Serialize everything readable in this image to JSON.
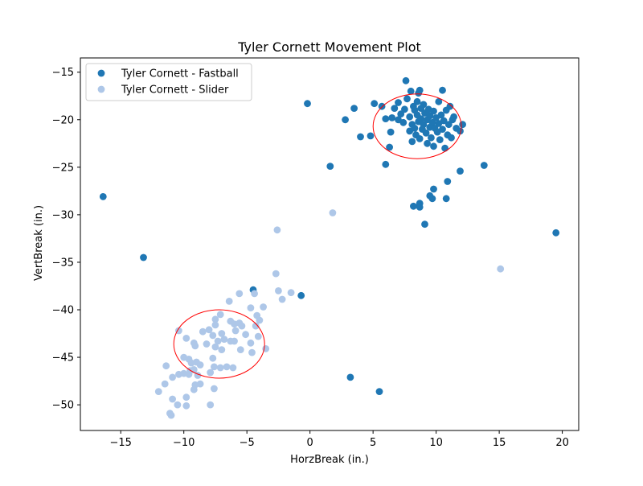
{
  "chart_data": {
    "type": "scatter",
    "title": "Tyler Cornett Movement Plot",
    "xlabel": "HorzBreak (in.)",
    "ylabel": "VertBreak (in.)",
    "xlim": [
      -18.2,
      21.3
    ],
    "ylim": [
      -52.7,
      -13.5
    ],
    "xticks": [
      -15,
      -10,
      -5,
      0,
      5,
      10,
      15,
      20
    ],
    "yticks": [
      -15,
      -20,
      -25,
      -30,
      -35,
      -40,
      -45,
      -50
    ],
    "xtick_labels": [
      "−15",
      "−10",
      "−5",
      "0",
      "5",
      "10",
      "15",
      "20"
    ],
    "ytick_labels": [
      "−15",
      "−20",
      "−25",
      "−30",
      "−35",
      "−40",
      "−45",
      "−50"
    ],
    "grid": false,
    "legend_position": "top-left",
    "ellipse_color": "#ff0000",
    "series": [
      {
        "name": "Tyler Cornett - Fastball",
        "color": "#1f77b4",
        "points": [
          [
            -16.4,
            -28.1
          ],
          [
            -13.2,
            -34.5
          ],
          [
            -0.2,
            -18.3
          ],
          [
            1.6,
            -24.9
          ],
          [
            2.8,
            -20.0
          ],
          [
            3.5,
            -18.8
          ],
          [
            4.0,
            -21.8
          ],
          [
            4.8,
            -21.7
          ],
          [
            5.1,
            -18.3
          ],
          [
            5.7,
            -18.6
          ],
          [
            6.0,
            -19.9
          ],
          [
            6.0,
            -24.7
          ],
          [
            6.3,
            -22.9
          ],
          [
            6.4,
            -21.3
          ],
          [
            6.5,
            -19.8
          ],
          [
            6.7,
            -18.8
          ],
          [
            7.0,
            -18.2
          ],
          [
            7.0,
            -20.0
          ],
          [
            7.2,
            -19.4
          ],
          [
            7.4,
            -20.3
          ],
          [
            7.5,
            -18.9
          ],
          [
            7.6,
            -15.9
          ],
          [
            7.7,
            -17.8
          ],
          [
            7.9,
            -19.7
          ],
          [
            7.9,
            -21.2
          ],
          [
            8.0,
            -17.0
          ],
          [
            8.1,
            -20.5
          ],
          [
            8.1,
            -22.3
          ],
          [
            8.2,
            -18.6
          ],
          [
            8.3,
            -19.0
          ],
          [
            8.3,
            -20.9
          ],
          [
            8.4,
            -21.6
          ],
          [
            8.5,
            -18.1
          ],
          [
            8.5,
            -19.5
          ],
          [
            8.6,
            -17.2
          ],
          [
            8.6,
            -20.2
          ],
          [
            8.7,
            -16.9
          ],
          [
            8.7,
            -22.0
          ],
          [
            8.8,
            -18.8
          ],
          [
            8.8,
            -19.9
          ],
          [
            8.9,
            -21.0
          ],
          [
            9.0,
            -20.5
          ],
          [
            9.0,
            -18.4
          ],
          [
            9.1,
            -19.3
          ],
          [
            9.2,
            -21.4
          ],
          [
            9.3,
            -20.0
          ],
          [
            9.3,
            -22.5
          ],
          [
            9.4,
            -18.9
          ],
          [
            9.5,
            -20.8
          ],
          [
            9.5,
            -19.6
          ],
          [
            9.6,
            -21.9
          ],
          [
            9.7,
            -20.3
          ],
          [
            9.8,
            -19.1
          ],
          [
            9.8,
            -22.8
          ],
          [
            9.9,
            -20.9
          ],
          [
            10.0,
            -19.8
          ],
          [
            10.1,
            -21.3
          ],
          [
            10.2,
            -18.1
          ],
          [
            10.2,
            -20.4
          ],
          [
            10.3,
            -22.1
          ],
          [
            10.4,
            -19.5
          ],
          [
            10.5,
            -21.0
          ],
          [
            10.5,
            -16.9
          ],
          [
            10.6,
            -20.1
          ],
          [
            10.7,
            -23.0
          ],
          [
            10.8,
            -19.0
          ],
          [
            10.9,
            -21.6
          ],
          [
            11.0,
            -20.5
          ],
          [
            11.1,
            -18.6
          ],
          [
            11.2,
            -21.9
          ],
          [
            11.3,
            -20.0
          ],
          [
            11.4,
            -19.7
          ],
          [
            11.6,
            -20.9
          ],
          [
            11.9,
            -25.4
          ],
          [
            11.9,
            -21.2
          ],
          [
            12.1,
            -20.5
          ],
          [
            10.9,
            -26.5
          ],
          [
            9.8,
            -27.3
          ],
          [
            9.7,
            -28.3
          ],
          [
            9.5,
            -28.0
          ],
          [
            8.7,
            -28.8
          ],
          [
            8.7,
            -29.2
          ],
          [
            8.2,
            -29.1
          ],
          [
            9.1,
            -31.0
          ],
          [
            10.8,
            -28.3
          ],
          [
            13.8,
            -24.8
          ],
          [
            19.5,
            -31.9
          ],
          [
            -0.7,
            -38.5
          ],
          [
            -4.5,
            -37.9
          ],
          [
            3.2,
            -47.1
          ],
          [
            5.5,
            -48.6
          ]
        ]
      },
      {
        "name": "Tyler Cornett - Slider",
        "color": "#aec7e8",
        "points": [
          [
            1.8,
            -29.8
          ],
          [
            15.1,
            -35.7
          ],
          [
            -2.6,
            -31.6
          ],
          [
            -2.7,
            -36.2
          ],
          [
            -2.5,
            -38.0
          ],
          [
            -1.5,
            -38.2
          ],
          [
            -2.2,
            -38.9
          ],
          [
            -4.4,
            -38.3
          ],
          [
            -5.6,
            -38.3
          ],
          [
            -6.4,
            -39.1
          ],
          [
            -3.7,
            -39.7
          ],
          [
            -4.7,
            -39.8
          ],
          [
            -4.2,
            -40.6
          ],
          [
            -4.0,
            -41.1
          ],
          [
            -7.1,
            -40.5
          ],
          [
            -7.5,
            -41.0
          ],
          [
            -7.5,
            -41.6
          ],
          [
            -6.3,
            -41.2
          ],
          [
            -6.0,
            -41.5
          ],
          [
            -5.6,
            -41.4
          ],
          [
            -5.4,
            -41.7
          ],
          [
            -4.3,
            -41.7
          ],
          [
            -8.5,
            -42.3
          ],
          [
            -8.0,
            -42.1
          ],
          [
            -7.7,
            -42.7
          ],
          [
            -7.0,
            -42.5
          ],
          [
            -6.8,
            -43.1
          ],
          [
            -6.3,
            -43.3
          ],
          [
            -5.9,
            -42.2
          ],
          [
            -5.1,
            -42.6
          ],
          [
            -4.7,
            -43.5
          ],
          [
            -4.1,
            -42.8
          ],
          [
            -10.4,
            -42.2
          ],
          [
            -9.8,
            -43.0
          ],
          [
            -9.2,
            -43.5
          ],
          [
            -9.1,
            -43.8
          ],
          [
            -8.2,
            -43.6
          ],
          [
            -7.5,
            -43.9
          ],
          [
            -7.3,
            -43.3
          ],
          [
            -7.0,
            -44.2
          ],
          [
            -6.0,
            -43.3
          ],
          [
            -5.5,
            -44.2
          ],
          [
            -4.6,
            -44.5
          ],
          [
            -3.5,
            -44.1
          ],
          [
            -10.0,
            -45.0
          ],
          [
            -9.6,
            -45.2
          ],
          [
            -9.4,
            -45.6
          ],
          [
            -9.0,
            -45.5
          ],
          [
            -8.7,
            -45.8
          ],
          [
            -7.7,
            -45.1
          ],
          [
            -7.6,
            -46.0
          ],
          [
            -7.1,
            -46.1
          ],
          [
            -6.6,
            -46.0
          ],
          [
            -6.1,
            -46.1
          ],
          [
            -11.4,
            -45.9
          ],
          [
            -10.4,
            -46.8
          ],
          [
            -10.0,
            -46.7
          ],
          [
            -9.6,
            -46.8
          ],
          [
            -9.5,
            -46.4
          ],
          [
            -9.2,
            -46.3
          ],
          [
            -8.9,
            -46.9
          ],
          [
            -7.9,
            -46.6
          ],
          [
            -10.9,
            -47.1
          ],
          [
            -11.5,
            -47.8
          ],
          [
            -9.1,
            -47.9
          ],
          [
            -8.7,
            -47.8
          ],
          [
            -12.0,
            -48.6
          ],
          [
            -9.2,
            -48.4
          ],
          [
            -7.6,
            -48.3
          ],
          [
            -10.9,
            -49.4
          ],
          [
            -9.8,
            -49.2
          ],
          [
            -10.5,
            -50.0
          ],
          [
            -9.8,
            -50.1
          ],
          [
            -7.9,
            -50.0
          ],
          [
            -11.1,
            -50.9
          ],
          [
            -11.0,
            -51.1
          ]
        ]
      }
    ],
    "ellipses": [
      {
        "cx": 8.5,
        "cy": -20.7,
        "rx": 3.5,
        "ry": 3.4
      },
      {
        "cx": -7.2,
        "cy": -43.6,
        "rx": 3.6,
        "ry": 3.6
      }
    ]
  }
}
